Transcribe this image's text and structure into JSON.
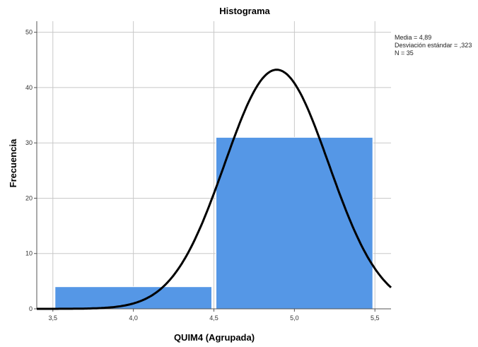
{
  "chart_data": {
    "type": "bar",
    "title": "Histograma",
    "xlabel": "QUIM4 (Agrupada)",
    "ylabel": "Frecuencia",
    "bins": [
      {
        "from": 3.5,
        "to": 4.5,
        "value": 4
      },
      {
        "from": 4.5,
        "to": 5.5,
        "value": 31
      }
    ],
    "xlim": [
      3.4,
      5.6
    ],
    "ylim": [
      0,
      52
    ],
    "x_ticks": [
      3.5,
      4.0,
      4.5,
      5.0,
      5.5
    ],
    "x_tick_labels": [
      "3,5",
      "4,0",
      "4,5",
      "5,0",
      "5,5"
    ],
    "y_ticks": [
      0,
      10,
      20,
      30,
      40,
      50
    ],
    "y_tick_labels": [
      "0",
      "10",
      "20",
      "30",
      "40",
      "50"
    ],
    "grid": true,
    "bar_color": "#5597e6",
    "normal_curve": {
      "mean": 4.89,
      "std": 0.323,
      "n": 35,
      "bin_width": 1.0,
      "color": "#000000"
    },
    "stats": [
      "Media = 4,89",
      "Desviación estándar = ,323",
      "N = 35"
    ]
  }
}
